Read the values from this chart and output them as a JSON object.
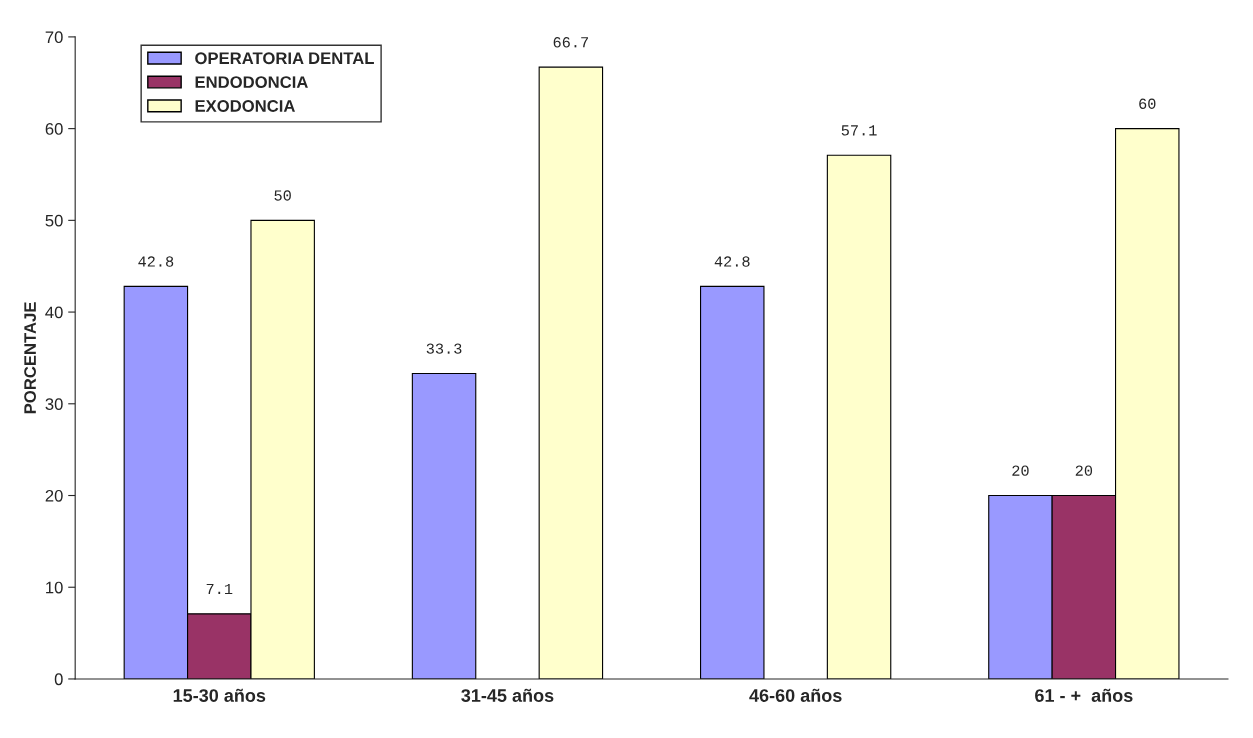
{
  "chart_data": {
    "type": "bar",
    "ylabel": "PORCENTAJE",
    "categories": [
      "15-30 años",
      "31-45 años",
      "46-60 años",
      "61 - +  años"
    ],
    "series": [
      {
        "name": "OPERATORIA DENTAL",
        "color": "#9999ff",
        "values": [
          42.8,
          33.3,
          42.8,
          20
        ]
      },
      {
        "name": "ENDODONCIA",
        "color": "#993366",
        "values": [
          7.1,
          null,
          null,
          20
        ]
      },
      {
        "name": "EXODONCIA",
        "color": "#ffffcc",
        "values": [
          50,
          66.7,
          57.1,
          60
        ]
      }
    ],
    "ylim": [
      0,
      70
    ],
    "yticks": [
      0,
      10,
      20,
      30,
      40,
      50,
      60,
      70
    ],
    "data_labels": true,
    "grid": false,
    "legend": "top left"
  }
}
